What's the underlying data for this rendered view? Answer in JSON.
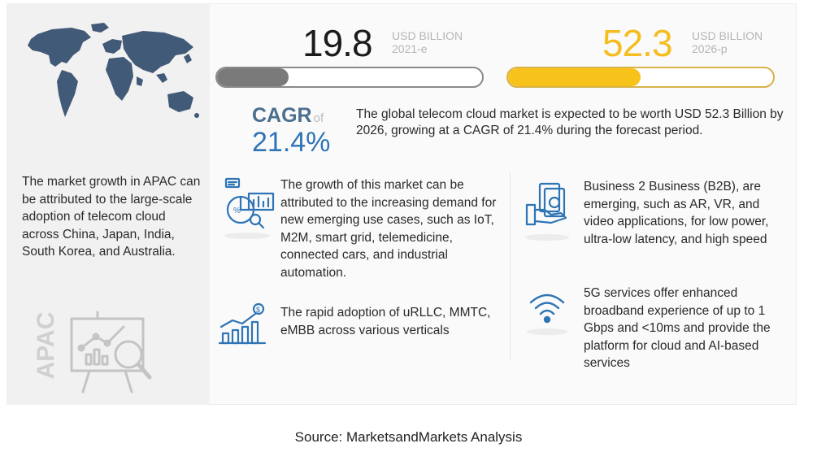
{
  "apac": {
    "description": "The market growth in APAC can be attributed to the large-scale adoption of telecom cloud across China, Japan, India, South Korea, and Australia.",
    "vertical_label": "APAC"
  },
  "stats": {
    "value_2021": "19.8",
    "unit_2021": "USD BILLION",
    "year_2021": "2021-e",
    "value_2026": "52.3",
    "unit_2026": "USD BILLION",
    "year_2026": "2026-p",
    "fill_2021": 0.27,
    "fill_2026": 0.5
  },
  "cagr": {
    "label": "CAGR",
    "of": "of",
    "value": "21.4%",
    "description": "The global telecom cloud market is expected to be worth USD 52.3 Billion by 2026, growing at a CAGR of 21.4% during the forecast period."
  },
  "drivers": {
    "growth": "The growth of this market can be attributed to the increasing demand for new emerging use cases, such as IoT, M2M, smart grid, telemedicine, connected cars, and industrial automation.",
    "adoption": "The rapid adoption of uRLLC, MMTC, eMBB across various verticals",
    "b2b": "Business 2 Business (B2B), are emerging, such as AR, VR, and video applications, for low power, ultra-low latency, and high speed",
    "fiveg": "5G services offer enhanced broadband experience of up to 1 Gbps and <10ms and provide the platform for cloud and AI-based services"
  },
  "source": "Source: MarketsandMarkets Analysis",
  "colors": {
    "accent_yellow": "#f7c21a",
    "accent_blue": "#2f74b5",
    "map_blue": "#415a77",
    "bar_grey": "#7a7a7a"
  }
}
